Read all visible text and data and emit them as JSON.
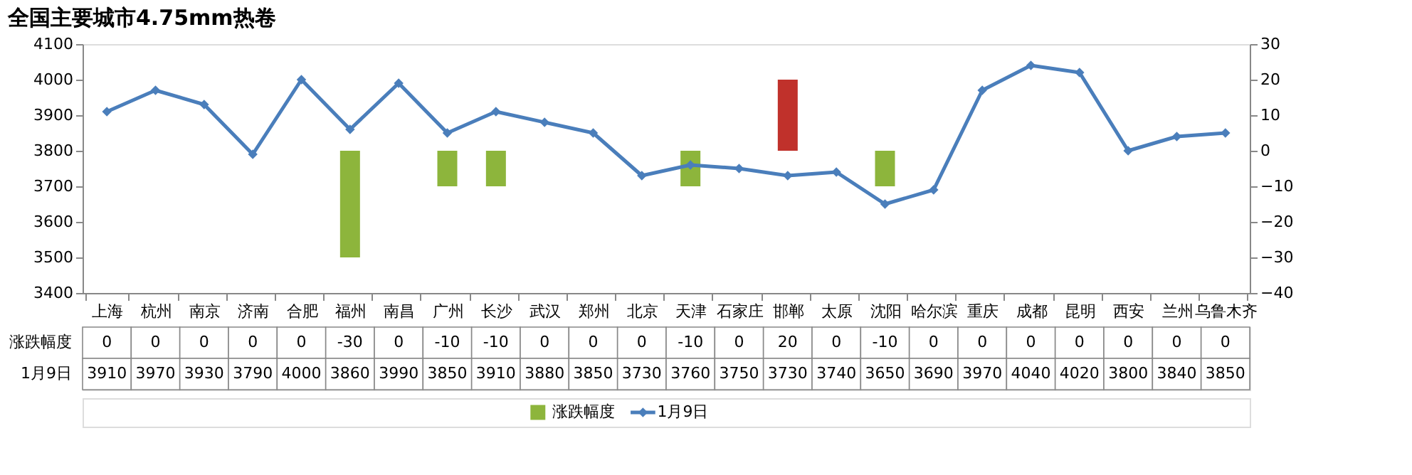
{
  "chart_data": {
    "type": "bar",
    "title": "全国主要城市4.75mm热卷",
    "categories": [
      "上海",
      "杭州",
      "南京",
      "济南",
      "合肥",
      "福州",
      "南昌",
      "广州",
      "长沙",
      "武汉",
      "郑州",
      "北京",
      "天津",
      "石家庄",
      "邯郸",
      "太原",
      "沈阳",
      "哈尔滨",
      "重庆",
      "成都",
      "昆明",
      "西安",
      "兰州",
      "乌鲁木齐"
    ],
    "series": [
      {
        "name": "涨跌幅度",
        "axis": "y2",
        "color": "#8db53c",
        "colors": [
          "#8db53c",
          "#8db53c",
          "#8db53c",
          "#8db53c",
          "#8db53c",
          "#8db53c",
          "#8db53c",
          "#8db53c",
          "#8db53c",
          "#8db53c",
          "#8db53c",
          "#8db53c",
          "#8db53c",
          "#8db53c",
          "#c0312b",
          "#8db53c",
          "#8db53c",
          "#8db53c",
          "#8db53c",
          "#8db53c",
          "#8db53c",
          "#8db53c",
          "#8db53c",
          "#8db53c"
        ],
        "values": [
          0,
          0,
          0,
          0,
          0,
          -30,
          0,
          -10,
          -10,
          0,
          0,
          0,
          -10,
          0,
          20,
          0,
          -10,
          0,
          0,
          0,
          0,
          0,
          0,
          0
        ]
      },
      {
        "name": "1月9日",
        "type": "line",
        "color": "#4a7ebb",
        "marker": "diamond",
        "line_style": "solid",
        "values": [
          3910,
          3970,
          3930,
          3790,
          4000,
          3860,
          3990,
          3850,
          3910,
          3880,
          3850,
          3730,
          3760,
          3750,
          3730,
          3740,
          3650,
          3690,
          3970,
          4040,
          4020,
          3800,
          3840,
          3850
        ]
      }
    ],
    "ylim": [
      3400,
      4100
    ],
    "yticks": [
      3400,
      3500,
      3600,
      3700,
      3800,
      3900,
      4000,
      4100
    ],
    "y2lim": [
      -40,
      30
    ],
    "y2ticks": [
      -40,
      -30,
      -20,
      -10,
      0,
      10,
      20,
      30
    ],
    "data_labels": true,
    "grid": false,
    "legend": "bottom"
  }
}
